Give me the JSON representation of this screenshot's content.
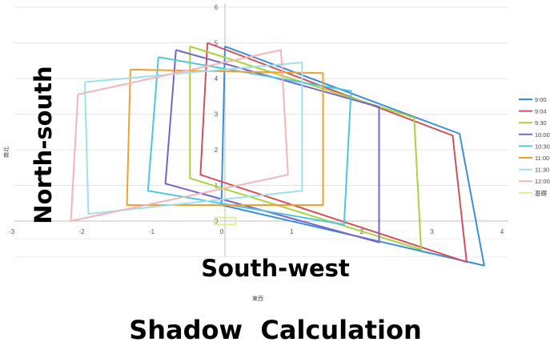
{
  "chart_data": {
    "type": "scatter",
    "title": "Shadow  Calculation",
    "xlabel": "South-west",
    "ylabel": "North-south",
    "xlabel_small": "東西",
    "ylabel_small": "南北",
    "xlim": [
      -3,
      4
    ],
    "ylim": [
      -1,
      6
    ],
    "x_ticks": [
      -3,
      -2,
      -1,
      0,
      1,
      2,
      3,
      4
    ],
    "y_ticks": [
      0,
      1,
      2,
      3,
      4,
      5,
      6
    ],
    "grid": "horizontal",
    "legend_position": "right",
    "series": [
      {
        "name": "9:00",
        "color": "#3b8fd9",
        "points": [
          [
            0,
            4.9
          ],
          [
            3.35,
            2.45
          ],
          [
            3.7,
            -1.25
          ],
          [
            -0.05,
            0.45
          ],
          [
            0,
            4.9
          ]
        ]
      },
      {
        "name": "9:04",
        "color": "#d1505a",
        "points": [
          [
            -0.25,
            5.0
          ],
          [
            3.25,
            2.4
          ],
          [
            3.45,
            -1.15
          ],
          [
            -0.35,
            1.3
          ],
          [
            -0.25,
            5.0
          ]
        ]
      },
      {
        "name": "9:30",
        "color": "#a8d43a",
        "points": [
          [
            -0.5,
            4.9
          ],
          [
            2.7,
            2.9
          ],
          [
            2.8,
            -0.8
          ],
          [
            -0.5,
            1.2
          ],
          [
            -0.5,
            4.9
          ]
        ]
      },
      {
        "name": "10:00",
        "color": "#7b62c9",
        "points": [
          [
            -0.7,
            4.8
          ],
          [
            2.2,
            3.2
          ],
          [
            2.2,
            -0.6
          ],
          [
            -0.85,
            1.05
          ],
          [
            -0.7,
            4.8
          ]
        ]
      },
      {
        "name": "10:30",
        "color": "#4ec6df",
        "points": [
          [
            -0.95,
            4.6
          ],
          [
            1.8,
            3.65
          ],
          [
            1.7,
            -0.1
          ],
          [
            -1.1,
            0.85
          ],
          [
            -0.95,
            4.6
          ]
        ]
      },
      {
        "name": "11:00",
        "color": "#f0a030",
        "points": [
          [
            -1.35,
            4.25
          ],
          [
            1.4,
            4.15
          ],
          [
            1.4,
            0.45
          ],
          [
            -1.4,
            0.45
          ],
          [
            -1.35,
            4.25
          ]
        ]
      },
      {
        "name": "11:30",
        "color": "#9fe0ee",
        "points": [
          [
            -2.0,
            3.9
          ],
          [
            1.1,
            4.45
          ],
          [
            1.1,
            0.85
          ],
          [
            -1.95,
            0.2
          ],
          [
            -2.0,
            3.9
          ]
        ]
      },
      {
        "name": "12:00",
        "color": "#f2b5b8",
        "points": [
          [
            -2.1,
            3.55
          ],
          [
            0.8,
            4.8
          ],
          [
            0.9,
            1.3
          ],
          [
            -2.2,
            0.0
          ],
          [
            -2.1,
            3.55
          ]
        ]
      },
      {
        "name": "基礎",
        "color": "#dcef9a",
        "points": [
          [
            -0.15,
            0.1
          ],
          [
            0.15,
            0.1
          ],
          [
            0.15,
            -0.1
          ],
          [
            -0.15,
            -0.1
          ],
          [
            -0.15,
            0.1
          ]
        ]
      }
    ]
  }
}
